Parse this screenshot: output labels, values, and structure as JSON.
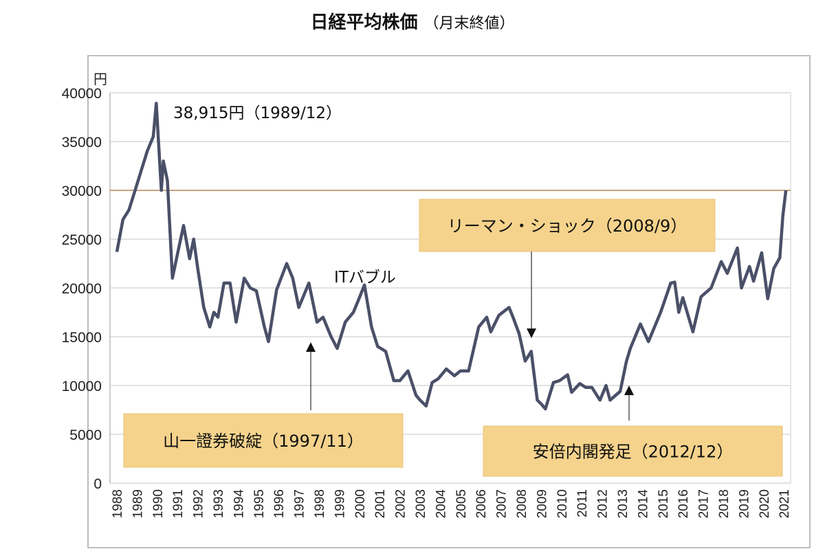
{
  "chart_data": {
    "type": "line",
    "title": "日経平均株価",
    "subtitle": "（月末終値）",
    "ylabel": "円",
    "xlabel": "",
    "ylim": [
      0,
      40000
    ],
    "yticks": [
      0,
      5000,
      10000,
      15000,
      20000,
      25000,
      30000,
      35000,
      40000
    ],
    "xticks": [
      "1988",
      "1989",
      "1990",
      "1991",
      "1992",
      "1993",
      "1994",
      "1995",
      "1996",
      "1997",
      "1998",
      "1999",
      "2000",
      "2001",
      "2002",
      "2003",
      "2004",
      "2005",
      "2006",
      "2007",
      "2008",
      "2009",
      "2010",
      "2011",
      "2012",
      "2013",
      "2014",
      "2015",
      "2016",
      "2017",
      "2018",
      "2019",
      "2020",
      "2021"
    ],
    "grid": true,
    "reference_line": {
      "value": 30000,
      "color": "#c9a27e"
    },
    "line_color": "#4a5068",
    "series": [
      {
        "x": [
          1988.0,
          1988.3,
          1988.6,
          1988.9,
          1989.2,
          1989.5,
          1989.8,
          1989.95,
          1990.2,
          1990.3,
          1990.5,
          1990.75,
          1991.0,
          1991.3,
          1991.6,
          1991.8,
          1992.0,
          1992.3,
          1992.6,
          1992.8,
          1993.0,
          1993.3,
          1993.6,
          1993.9,
          1994.3,
          1994.6,
          1994.9,
          1995.3,
          1995.5,
          1995.9,
          1996.4,
          1996.7,
          1997.0,
          1997.5,
          1997.9,
          1998.2,
          1998.6,
          1998.9,
          1999.3,
          1999.7,
          2000.0,
          2000.25,
          2000.6,
          2000.9,
          2001.3,
          2001.7,
          2002.0,
          2002.4,
          2002.8,
          2003.0,
          2003.3,
          2003.6,
          2003.9,
          2004.3,
          2004.7,
          2005.0,
          2005.4,
          2005.9,
          2006.3,
          2006.5,
          2006.9,
          2007.4,
          2007.6,
          2007.9,
          2008.2,
          2008.5,
          2008.8,
          2009.0,
          2009.2,
          2009.6,
          2009.9,
          2010.3,
          2010.5,
          2010.9,
          2011.2,
          2011.5,
          2011.9,
          2012.2,
          2012.4,
          2012.9,
          2013.2,
          2013.4,
          2013.9,
          2014.3,
          2014.9,
          2015.4,
          2015.6,
          2015.8,
          2016.0,
          2016.5,
          2016.9,
          2017.4,
          2017.9,
          2018.2,
          2018.7,
          2018.9,
          2019.3,
          2019.5,
          2019.9,
          2020.2,
          2020.5,
          2020.8,
          2020.95,
          2021.1
        ],
        "values": [
          23700,
          27000,
          28000,
          30000,
          32000,
          34000,
          35500,
          38915,
          30000,
          33000,
          31000,
          21000,
          23500,
          26400,
          23000,
          25000,
          22000,
          18000,
          16000,
          17500,
          17000,
          20500,
          20500,
          16500,
          21000,
          20000,
          19700,
          16000,
          14500,
          19800,
          22500,
          21000,
          18000,
          20500,
          16500,
          17000,
          15000,
          13800,
          16500,
          17500,
          19000,
          20300,
          16000,
          14000,
          13500,
          10500,
          10500,
          11500,
          9000,
          8500,
          7900,
          10300,
          10700,
          11700,
          11000,
          11500,
          11500,
          16000,
          17000,
          15500,
          17200,
          18000,
          17000,
          15300,
          12500,
          13500,
          8500,
          8100,
          7600,
          10300,
          10500,
          11100,
          9300,
          10200,
          9800,
          9800,
          8500,
          10000,
          8500,
          9400,
          12400,
          13800,
          16300,
          14500,
          17500,
          20500,
          20600,
          17500,
          19000,
          15500,
          19100,
          20000,
          22700,
          21500,
          24100,
          20000,
          22200,
          20700,
          23600,
          18900,
          22000,
          23100,
          27400,
          30000
        ]
      }
    ],
    "annotations": {
      "peak": "38,915円（1989/12）",
      "it_bubble": "ITバブル",
      "lehman": "リーマン・ショック（2008/9）",
      "yamaichi": "山一證券破綻（1997/11）",
      "abe": "安倍内閣発足（2012/12）"
    },
    "callout_color": "#f5d38c"
  }
}
